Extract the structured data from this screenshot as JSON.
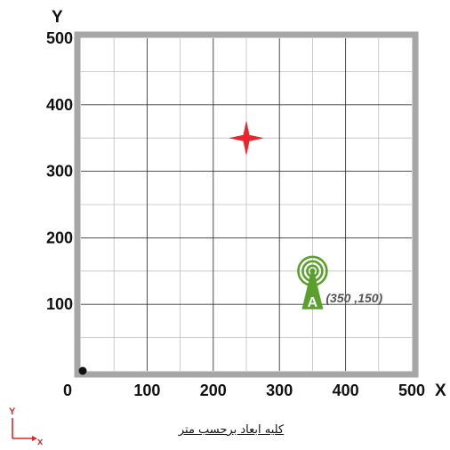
{
  "chart_data": {
    "type": "scatter",
    "xlabel": "X",
    "ylabel": "Y",
    "xlim": [
      0,
      500
    ],
    "ylim": [
      0,
      500
    ],
    "x_ticks": [
      "0",
      "100",
      "200",
      "300",
      "400",
      "500"
    ],
    "y_ticks": [
      "100",
      "200",
      "300",
      "400",
      "500"
    ],
    "grid": true,
    "minor_grid_step": 50,
    "points": [
      {
        "kind": "origin",
        "x": 0,
        "y": 0
      },
      {
        "kind": "target-star",
        "x": 250,
        "y": 350
      },
      {
        "kind": "antenna",
        "x": 350,
        "y": 150,
        "label": "A",
        "coord_label": "(350 ,150)"
      }
    ]
  },
  "legend_axes": {
    "y_label": "Y",
    "x_label": "x"
  },
  "caption": "کلیه ابعاد برحسب متر",
  "colors": {
    "frame": "#a6a6a6",
    "major_grid": "#3a3a3a",
    "minor_grid": "#bfbfbf",
    "star": "#e8262f",
    "antenna": "#5aa02c",
    "mini_axes": "#d9262b"
  },
  "icons": {
    "antenna": "antenna-icon",
    "star": "star-icon",
    "origin": "origin-dot"
  }
}
